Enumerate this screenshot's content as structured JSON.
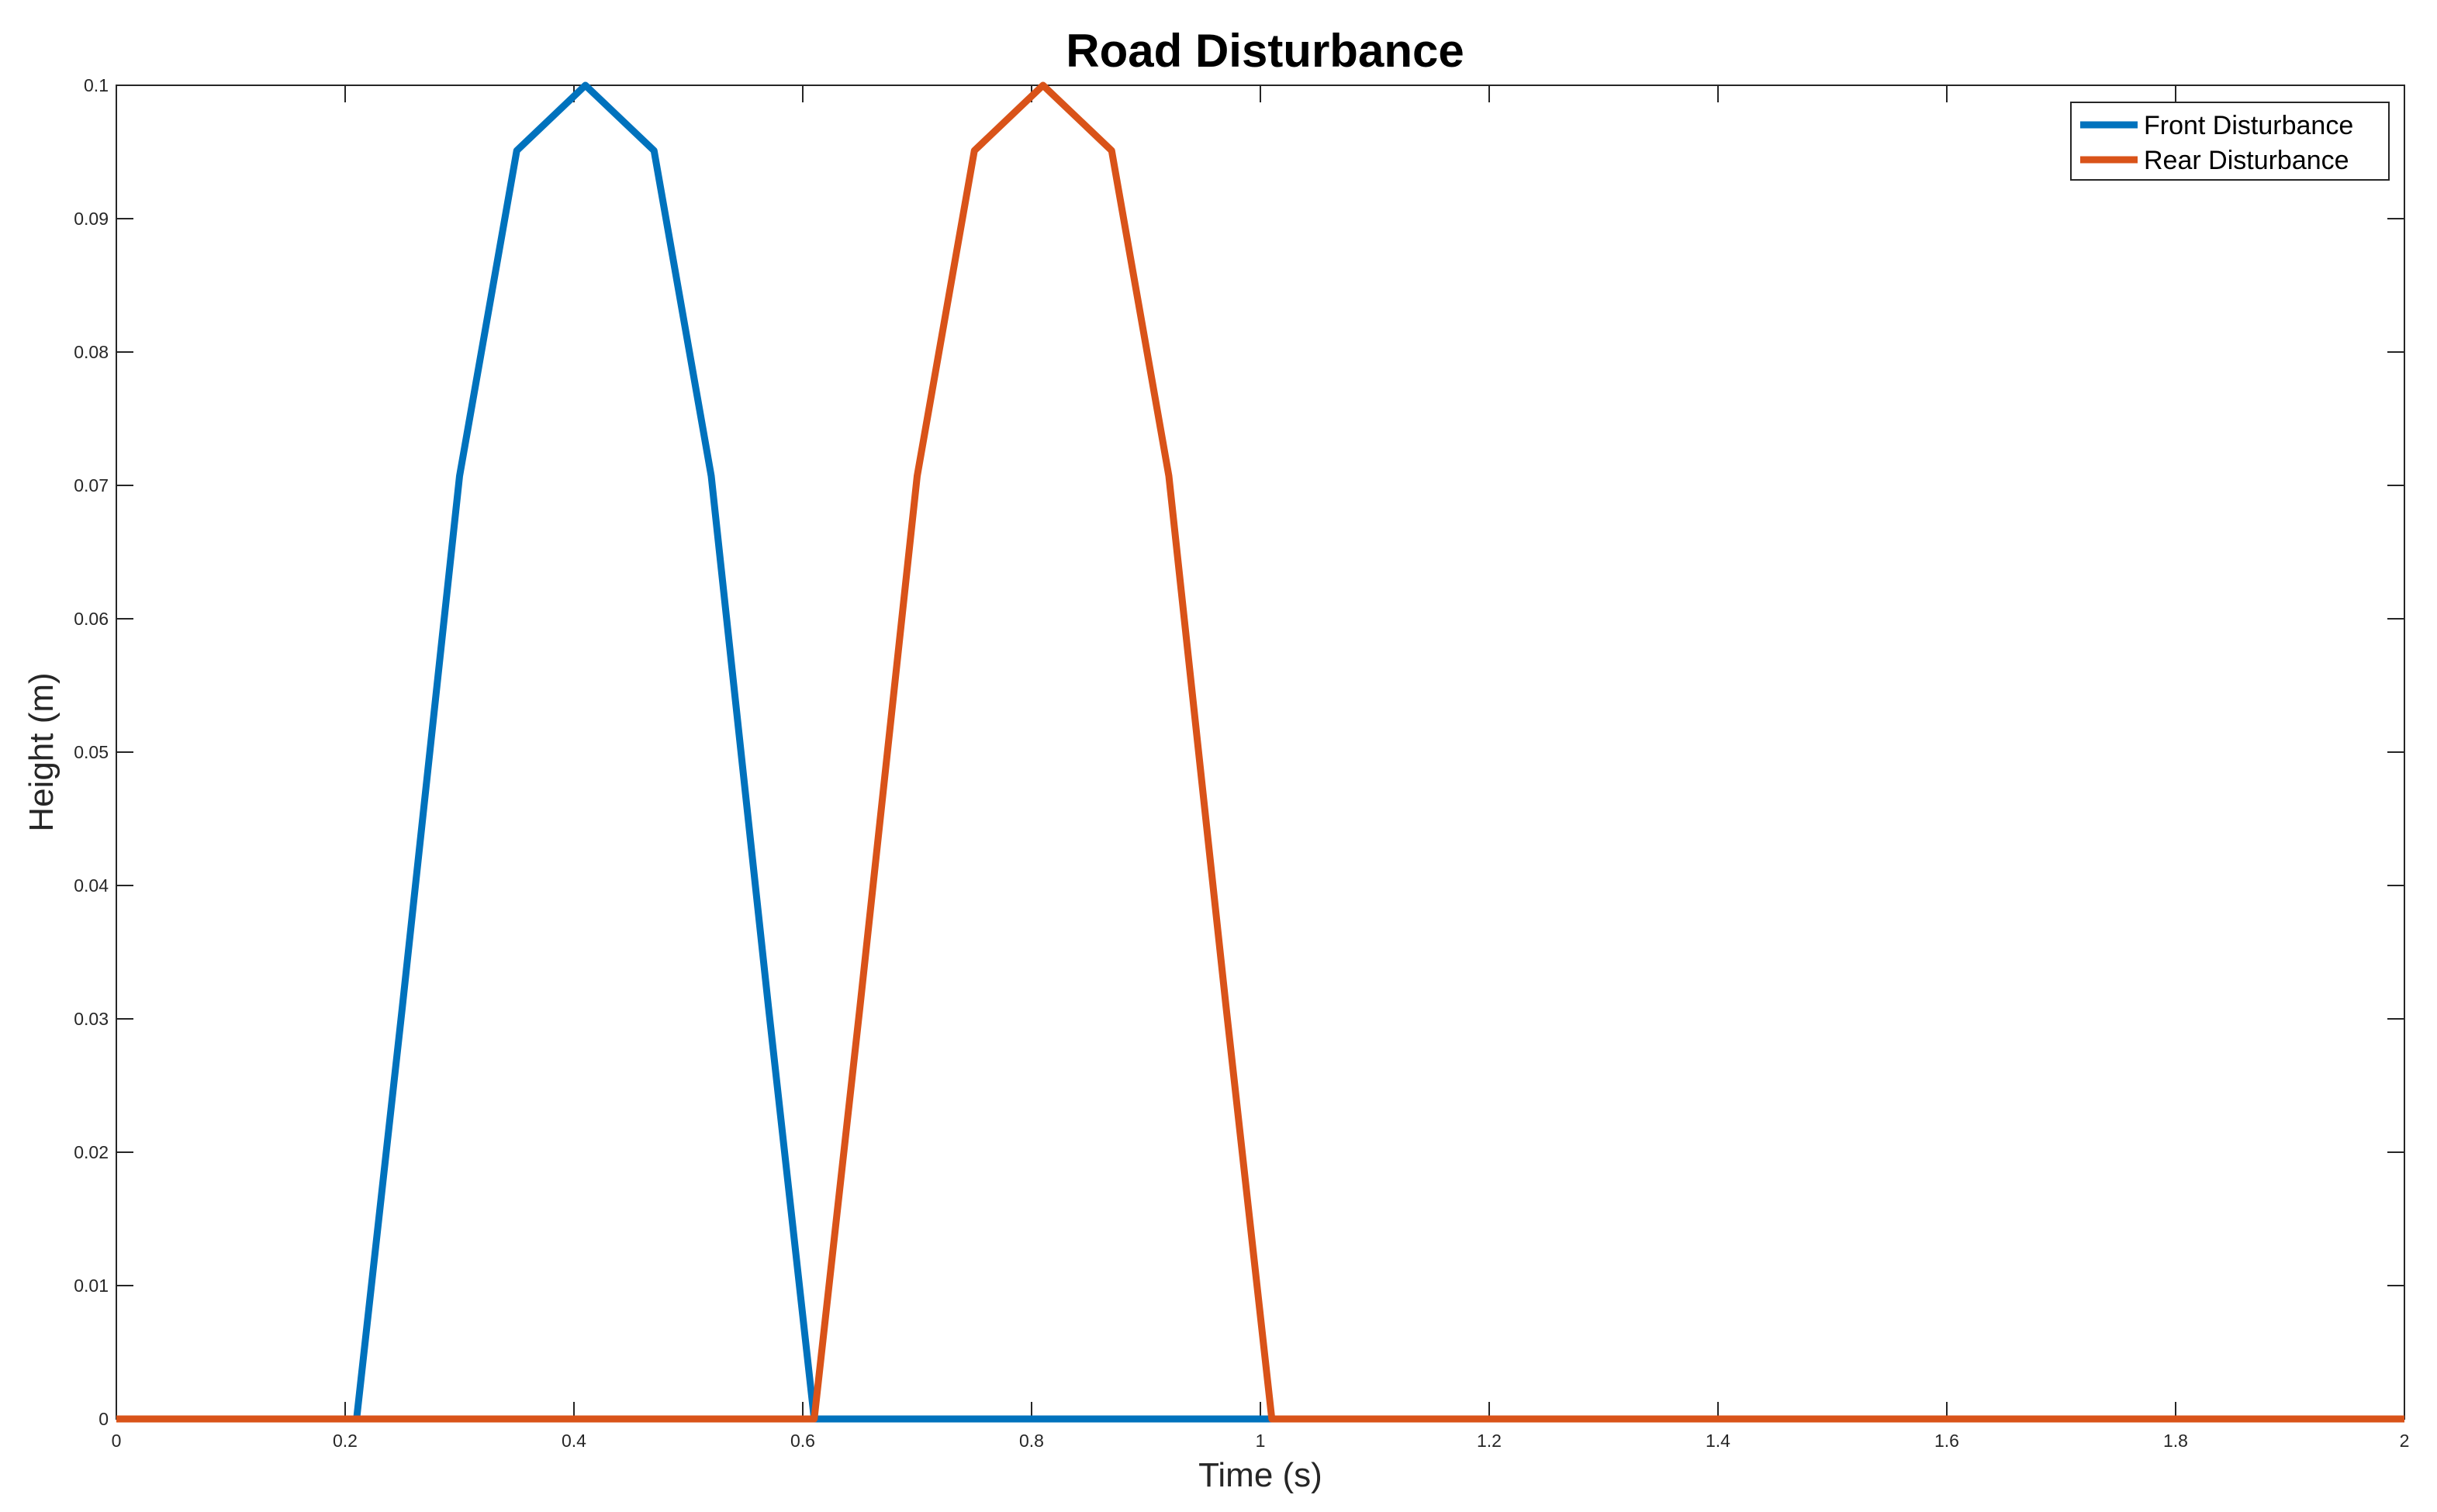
{
  "chart_data": {
    "type": "line",
    "title": "Road Disturbance",
    "xlabel": "Time (s)",
    "ylabel": "Height (m)",
    "xlim": [
      0,
      2
    ],
    "ylim": [
      0,
      0.1
    ],
    "xticks": [
      0,
      0.2,
      0.4,
      0.6,
      0.8,
      1,
      1.2,
      1.4,
      1.6,
      1.8,
      2
    ],
    "xtick_labels": [
      "0",
      "0.2",
      "0.4",
      "0.6",
      "0.8",
      "1",
      "1.2",
      "1.4",
      "1.6",
      "1.8",
      "2"
    ],
    "yticks": [
      0,
      0.01,
      0.02,
      0.03,
      0.04,
      0.05,
      0.06,
      0.07,
      0.08,
      0.09,
      0.1
    ],
    "ytick_labels": [
      "0",
      "0.01",
      "0.02",
      "0.03",
      "0.04",
      "0.05",
      "0.06",
      "0.07",
      "0.08",
      "0.09",
      "0.1"
    ],
    "grid": false,
    "legend_position": "top-right",
    "series": [
      {
        "name": "Front Disturbance",
        "color": "#0072BD",
        "x": [
          0,
          0.2,
          0.21,
          0.25,
          0.3,
          0.35,
          0.41,
          0.47,
          0.52,
          0.57,
          0.61,
          0.62,
          1.0,
          1.01,
          2
        ],
        "y": [
          0,
          0,
          0,
          0.0309,
          0.0707,
          0.0951,
          0.1,
          0.0951,
          0.0707,
          0.0309,
          0,
          0,
          0,
          0,
          0
        ]
      },
      {
        "name": "Rear Disturbance",
        "color": "#D95319",
        "x": [
          0,
          0.6,
          0.61,
          0.65,
          0.7,
          0.75,
          0.81,
          0.87,
          0.92,
          0.97,
          1.01,
          2
        ],
        "y": [
          0,
          0,
          0,
          0.0309,
          0.0707,
          0.0951,
          0.1,
          0.0951,
          0.0707,
          0.0309,
          0,
          0
        ]
      }
    ]
  }
}
